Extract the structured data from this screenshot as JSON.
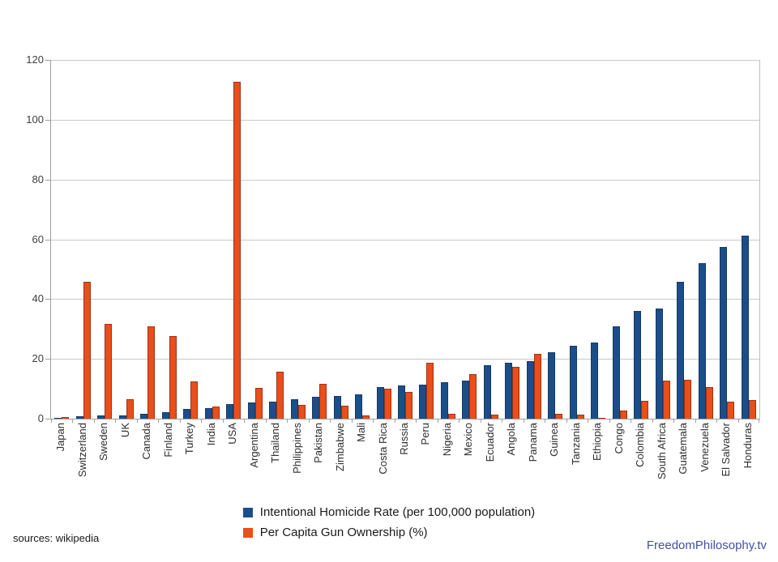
{
  "chart_data": {
    "type": "bar",
    "title": "",
    "xlabel": "",
    "ylabel": "",
    "categories": [
      "Japan",
      "Switzerland",
      "Sweden",
      "UK",
      "Canada",
      "Finland",
      "Turkey",
      "India",
      "USA",
      "Argentina",
      "Thailand",
      "Philippines",
      "Pakistan",
      "Zimbabwe",
      "Mali",
      "Costa Rica",
      "Russia",
      "Peru",
      "Nigeria",
      "Mexico",
      "Ecuador",
      "Angola",
      "Panama",
      "Guinea",
      "Tanzania",
      "Ethiopia",
      "Congo",
      "Colombia",
      "South Africa",
      "Guatemala",
      "Venezuela",
      "El Salvador",
      "Honduras"
    ],
    "series": [
      {
        "name": "Intentional Homicide Rate (per 100,000 population)",
        "color": "#1b4e89",
        "border_color": "#123a68",
        "values": [
          0.4,
          0.7,
          1.0,
          1.2,
          1.6,
          2.2,
          3.3,
          3.5,
          5.0,
          5.5,
          5.6,
          6.4,
          7.3,
          7.6,
          8.0,
          10.5,
          11.0,
          11.5,
          12.1,
          12.7,
          18.0,
          18.8,
          19.3,
          22.3,
          24.3,
          25.5,
          30.8,
          35.9,
          36.8,
          45.8,
          52.0,
          57.3,
          61.3
        ]
      },
      {
        "name": "Per Capita Gun Ownership (%)",
        "color": "#e94e1b",
        "border_color": "#9c3310",
        "values": [
          0.6,
          45.7,
          31.6,
          6.6,
          30.8,
          27.5,
          12.5,
          4.2,
          112.6,
          10.2,
          15.6,
          4.7,
          11.6,
          4.4,
          1.1,
          9.9,
          8.9,
          18.8,
          1.5,
          15.0,
          1.3,
          17.3,
          21.7,
          1.5,
          1.4,
          0.4,
          2.7,
          5.9,
          12.7,
          13.1,
          10.7,
          5.8,
          6.2
        ]
      }
    ],
    "ylim": [
      0,
      120
    ],
    "yticks": [
      0,
      20,
      40,
      60,
      80,
      100,
      120
    ],
    "grid": true,
    "legend_position": "bottom"
  },
  "footer": {
    "source_text": "sources: wikipedia",
    "brand_text": "FreedomPhilosophy.tv",
    "brand_color": "#3f51a3"
  }
}
